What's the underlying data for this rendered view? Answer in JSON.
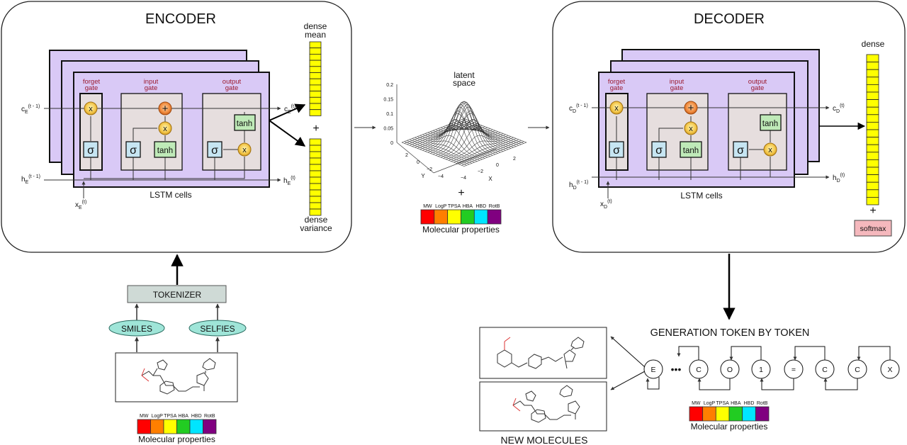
{
  "encoder": {
    "title": "ENCODER",
    "gates": {
      "forget": [
        "forget",
        "gate"
      ],
      "input": [
        "input",
        "gate"
      ],
      "output": [
        "output",
        "gate"
      ]
    },
    "ops": {
      "mult": "x",
      "add": "+",
      "sigma": "σ",
      "tanh": "tanh"
    },
    "cell_state_in": {
      "base": "c",
      "sub": "E",
      "sup": "(t - 1)"
    },
    "cell_state_out": {
      "base": "c",
      "sub": "E",
      "sup": "(t)"
    },
    "hidden_in": {
      "base": "h",
      "sub": "E",
      "sup": "(t - 1)"
    },
    "hidden_out": {
      "base": "h",
      "sub": "E",
      "sup": "(t)"
    },
    "input_x": {
      "base": "x",
      "sub": "E",
      "sup": "(t)"
    },
    "cells_label": "LSTM cells",
    "dense_mean": [
      "dense",
      "mean"
    ],
    "dense_variance": [
      "dense",
      "variance"
    ],
    "plus": "+"
  },
  "decoder": {
    "title": "DECODER",
    "gates": {
      "forget": [
        "forget",
        "gate"
      ],
      "input": [
        "input",
        "gate"
      ],
      "output": [
        "output",
        "gate"
      ]
    },
    "ops": {
      "mult": "x",
      "add": "+",
      "sigma": "σ",
      "tanh": "tanh"
    },
    "cell_state_in": {
      "base": "c",
      "sub": "D",
      "sup": "(t - 1)"
    },
    "cell_state_out": {
      "base": "c",
      "sub": "D",
      "sup": "(t)"
    },
    "hidden_in": {
      "base": "h",
      "sub": "D",
      "sup": "(t - 1)"
    },
    "hidden_out": {
      "base": "h",
      "sub": "D",
      "sup": "(t)"
    },
    "input_x": {
      "base": "x",
      "sub": "D",
      "sup": "(t)"
    },
    "cells_label": "LSTM cells",
    "dense": "dense",
    "plus": "+",
    "softmax": "softmax"
  },
  "latent": {
    "title": [
      "latent",
      "space"
    ],
    "z_ticks": [
      "0.2",
      "0.15",
      "0.1",
      "0.05",
      "0"
    ],
    "y_ticks": [
      "2",
      "0",
      "−2",
      "−4"
    ],
    "x_ticks": [
      "−4",
      "−2",
      "0",
      "2"
    ],
    "y_axis": "Y",
    "x_axis": "X",
    "plus": "+"
  },
  "properties": {
    "labels": [
      "MW",
      "LogP",
      "TPSA",
      "HBA",
      "HBD",
      "RotB"
    ],
    "colors": [
      "#ff0000",
      "#ff7f00",
      "#ffff00",
      "#22cc22",
      "#00e5ff",
      "#800080"
    ],
    "caption": "Molecular properties"
  },
  "input_pipeline": {
    "tokenizer": "TOKENIZER",
    "representations": [
      "SMILES",
      "SELFIES"
    ]
  },
  "generation": {
    "title": "GENERATION TOKEN BY TOKEN",
    "tokens": [
      "E",
      "C",
      "O",
      "1",
      "=",
      "C",
      "C",
      "X"
    ],
    "ellipsis": "•••",
    "new_molecules": "NEW MOLECULES"
  }
}
